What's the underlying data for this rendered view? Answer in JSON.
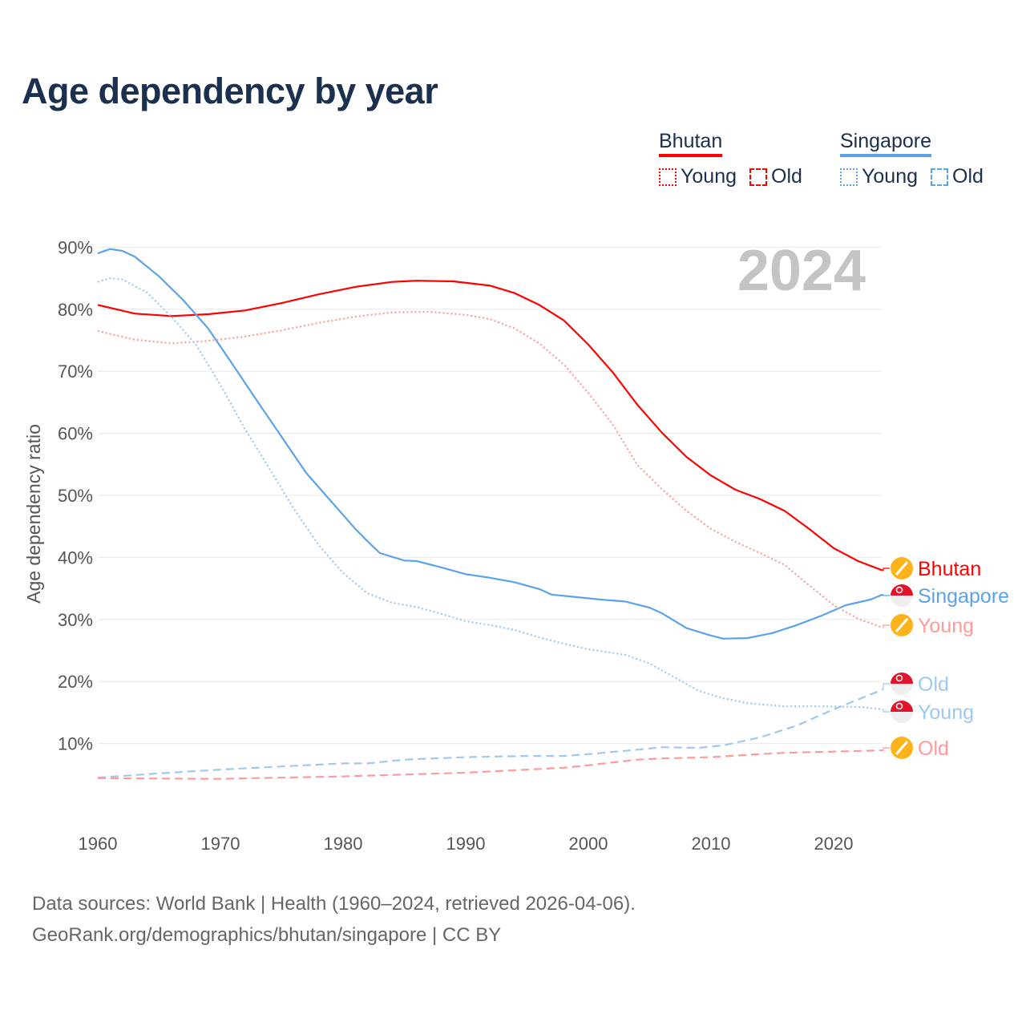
{
  "title": "Age dependency by year",
  "legend": {
    "groups": [
      {
        "name": "Bhutan",
        "color": "#ff0000",
        "items": [
          "Young",
          "Old"
        ]
      },
      {
        "name": "Singapore",
        "color": "#5ba3e8",
        "items": [
          "Young",
          "Old"
        ]
      }
    ]
  },
  "footer": {
    "line1": "Data sources: World Bank | Health (1960–2024, retrieved 2026-04-06).",
    "line2": "GeoRank.org/demographics/bhutan/singapore | CC BY"
  },
  "chart_data": {
    "type": "line",
    "title": "Age dependency by year",
    "ylabel": "Age dependency ratio",
    "xlabel": "",
    "xlim": [
      1960,
      2024
    ],
    "ylim": [
      0,
      90
    ],
    "x_ticks": [
      "1960",
      "1970",
      "1980",
      "1990",
      "2000",
      "2010",
      "2020"
    ],
    "y_ticks": [
      "10%",
      "20%",
      "30%",
      "40%",
      "50%",
      "60%",
      "70%",
      "80%",
      "90%"
    ],
    "year_watermark": "2024",
    "grid": true,
    "series": [
      {
        "name": "Bhutan",
        "label": "Bhutan",
        "country": "Bhutan",
        "style": "solid",
        "color": "#ff0000",
        "x": [
          1960,
          1963,
          1966,
          1969,
          1972,
          1975,
          1978,
          1981,
          1984,
          1986,
          1989,
          1992,
          1994,
          1996,
          1998,
          2000,
          2002,
          2004,
          2006,
          2008,
          2010,
          2012,
          2014,
          2016,
          2018,
          2020,
          2022,
          2024
        ],
        "y": [
          80.7,
          79.3,
          78.9,
          79.2,
          79.8,
          81,
          82.4,
          83.6,
          84.4,
          84.6,
          84.5,
          83.8,
          82.6,
          80.7,
          78.2,
          74.3,
          69.8,
          64.6,
          60.1,
          56.2,
          53.2,
          50.9,
          49.4,
          47.5,
          44.6,
          41.5,
          39.4,
          37.9
        ]
      },
      {
        "name": "Singapore",
        "label": "Singapore",
        "country": "Singapore",
        "style": "solid",
        "color": "#5ba3e8",
        "x": [
          1960,
          1961,
          1962,
          1963,
          1965,
          1967,
          1969,
          1971,
          1973,
          1975,
          1977,
          1979,
          1981,
          1982,
          1983,
          1985,
          1986,
          1988,
          1990,
          1992,
          1994,
          1996,
          1997,
          1999,
          2001,
          2003,
          2005,
          2006,
          2008,
          2010,
          2011,
          2013,
          2015,
          2017,
          2019,
          2021,
          2023,
          2024
        ],
        "y": [
          89,
          89.7,
          89.4,
          88.5,
          85.3,
          81.4,
          76.9,
          71.1,
          65.2,
          59.4,
          53.6,
          49.1,
          44.6,
          42.6,
          40.7,
          39.5,
          39.4,
          38.4,
          37.3,
          36.7,
          36,
          34.9,
          34,
          33.6,
          33.2,
          32.9,
          31.9,
          31,
          28.6,
          27.4,
          26.9,
          27,
          27.8,
          29.1,
          30.6,
          32.3,
          33.2,
          34
        ]
      },
      {
        "name": "Bhutan Young",
        "label": "Young",
        "country": "Bhutan",
        "style": "dotted",
        "color": "#ff9a9a",
        "x": [
          1960,
          1963,
          1966,
          1969,
          1972,
          1975,
          1978,
          1981,
          1984,
          1987,
          1990,
          1992,
          1994,
          1996,
          1998,
          2000,
          2002,
          2004,
          2006,
          2008,
          2010,
          2012,
          2014,
          2016,
          2018,
          2020,
          2022,
          2024
        ],
        "y": [
          76.5,
          75.1,
          74.5,
          74.9,
          75.6,
          76.6,
          77.8,
          78.8,
          79.5,
          79.6,
          79.1,
          78.4,
          76.9,
          74.5,
          71.1,
          66.5,
          61.4,
          54.9,
          51,
          47.5,
          44.6,
          42.5,
          40.7,
          38.8,
          35.5,
          32.3,
          30.1,
          28.7
        ]
      },
      {
        "name": "Singapore Old",
        "label": "Old",
        "country": "Singapore",
        "style": "dashed",
        "color": "#9fc8f0",
        "x": [
          1960,
          1965,
          1970,
          1975,
          1980,
          1982,
          1985,
          1990,
          1995,
          1998,
          2000,
          2004,
          2006,
          2009,
          2011,
          2014,
          2017,
          2020,
          2022,
          2024
        ],
        "y": [
          4.5,
          5.2,
          5.8,
          6.3,
          6.8,
          6.8,
          7.4,
          7.8,
          8,
          8,
          8.3,
          9,
          9.4,
          9.3,
          9.7,
          11,
          12.9,
          15.5,
          17.1,
          18.7
        ]
      },
      {
        "name": "Singapore Young",
        "label": "Young",
        "country": "Singapore",
        "style": "dotted",
        "color": "#9fc8f0",
        "x": [
          1960,
          1961,
          1962,
          1964,
          1966,
          1968,
          1970,
          1972,
          1974,
          1976,
          1978,
          1980,
          1982,
          1984,
          1986,
          1988,
          1990,
          1992,
          1994,
          1996,
          1998,
          2000,
          2003,
          2005,
          2007,
          2009,
          2011,
          2013,
          2016,
          2019,
          2022,
          2024
        ],
        "y": [
          84.4,
          85,
          84.8,
          82.7,
          78.8,
          74.3,
          67.8,
          60.7,
          54.3,
          47.8,
          42,
          37.5,
          34.2,
          32.7,
          32,
          30.9,
          29.7,
          29.1,
          28.3,
          27.1,
          26.1,
          25.2,
          24.3,
          22.9,
          20.7,
          18.5,
          17.3,
          16.5,
          16,
          16,
          15.9,
          15.5
        ]
      },
      {
        "name": "Bhutan Old",
        "label": "Old",
        "country": "Bhutan",
        "style": "dashed",
        "color": "#ff9a9a",
        "x": [
          1960,
          1970,
          1980,
          1990,
          1998,
          2000,
          2004,
          2006,
          2010,
          2014,
          2016,
          2020,
          2024
        ],
        "y": [
          4.4,
          4.3,
          4.7,
          5.3,
          6.1,
          6.5,
          7.4,
          7.6,
          7.8,
          8.3,
          8.5,
          8.7,
          8.9
        ]
      }
    ]
  }
}
